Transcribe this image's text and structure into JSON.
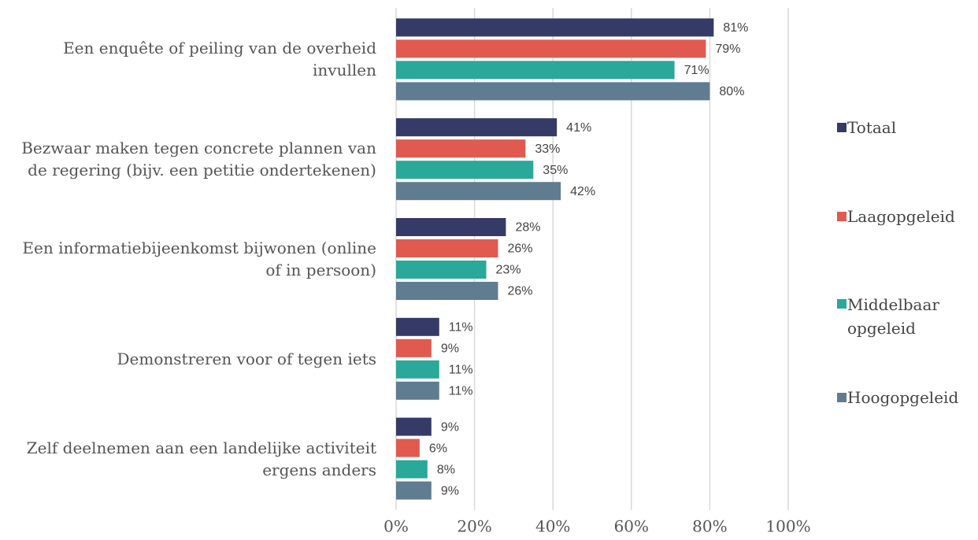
{
  "chart_data": {
    "type": "barh",
    "categories": [
      "Een enquête of peiling van de overheid invullen",
      "Bezwaar maken tegen concrete plannen van de regering (bijv. een petitie ondertekenen)",
      "Een informatiebijeenkomst bijwonen (online of in persoon)",
      "Demonstreren voor of tegen iets",
      "Zelf deelnemen aan een landelijke activiteit ergens anders"
    ],
    "series": [
      {
        "name": "Totaal",
        "color": "#353a66",
        "values": [
          81,
          41,
          28,
          11,
          9
        ],
        "value_labels": [
          "81%",
          "41%",
          "28%",
          "11%",
          "9%"
        ]
      },
      {
        "name": "Laagopgeleid",
        "color": "#e05a50",
        "values": [
          79,
          33,
          26,
          9,
          6
        ],
        "value_labels": [
          "79%",
          "33%",
          "26%",
          "9%",
          "6%"
        ]
      },
      {
        "name": "Middelbaar opgeleid",
        "color": "#2aa89a",
        "values": [
          71,
          35,
          23,
          11,
          8
        ],
        "value_labels": [
          "71%",
          "35%",
          "23%",
          "11%",
          "8%"
        ]
      },
      {
        "name": "Hoogopgeleid",
        "color": "#607c91",
        "values": [
          80,
          42,
          26,
          11,
          9
        ],
        "value_labels": [
          "80%",
          "42%",
          "26%",
          "11%",
          "9%"
        ]
      }
    ],
    "xlim": [
      0,
      100
    ],
    "xticks": [
      {
        "value": 0,
        "label": "0%"
      },
      {
        "value": 20,
        "label": "20%"
      },
      {
        "value": 40,
        "label": "40%"
      },
      {
        "value": 60,
        "label": "60%"
      },
      {
        "value": 80,
        "label": "80%"
      },
      {
        "value": 100,
        "label": "100%"
      }
    ],
    "grid": true,
    "legend": "right"
  }
}
